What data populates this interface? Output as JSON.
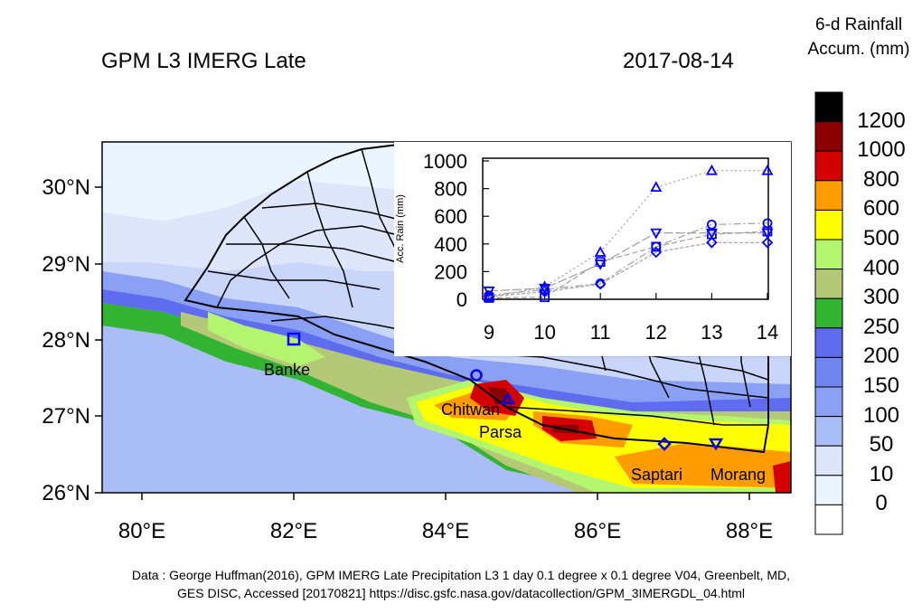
{
  "header": {
    "title": "GPM L3 IMERG Late",
    "date": "2017-08-14"
  },
  "colorbar": {
    "title_line1": "6-d Rainfall",
    "title_line2": "Accum. (mm)",
    "levels": [
      "1200",
      "1000",
      "800",
      "600",
      "500",
      "400",
      "300",
      "250",
      "200",
      "150",
      "100",
      "50",
      "10",
      "0"
    ],
    "colors": [
      "#000000",
      "#8b0000",
      "#d40000",
      "#ff9c00",
      "#ffff00",
      "#b4f56f",
      "#b4c878",
      "#32b432",
      "#5f6cf0",
      "#6f86f0",
      "#8aa0f5",
      "#a9bdf7",
      "#dde6fb",
      "#ebf5ff",
      "#ffffff"
    ]
  },
  "map": {
    "lat_labels": [
      "30°N",
      "29°N",
      "28°N",
      "27°N",
      "26°N"
    ],
    "lon_labels": [
      "80°E",
      "82°E",
      "84°E",
      "86°E",
      "88°E"
    ],
    "stations": [
      {
        "name": "Banke",
        "marker": "square"
      },
      {
        "name": "Chitwan",
        "marker": "circle"
      },
      {
        "name": "Parsa",
        "marker": "triangle-up"
      },
      {
        "name": "Saptari",
        "marker": "diamond"
      },
      {
        "name": "Morang",
        "marker": "triangle-down"
      }
    ],
    "marker_color": "#0000ff"
  },
  "chart_data": {
    "type": "line",
    "xlabel": "",
    "ylabel": "Acc. Rain (mm)",
    "x": [
      9,
      10,
      11,
      12,
      13,
      14
    ],
    "ylim": [
      0,
      1000
    ],
    "xticks": [
      "9",
      "10",
      "11",
      "12",
      "13",
      "14"
    ],
    "yticks": [
      "0",
      "200",
      "400",
      "600",
      "800",
      "1000"
    ],
    "series": [
      {
        "marker": "square",
        "values": [
          10,
          15,
          270,
          380,
          470,
          490
        ]
      },
      {
        "marker": "circle",
        "values": [
          30,
          70,
          115,
          380,
          540,
          550
        ]
      },
      {
        "marker": "triangle-up",
        "values": [
          15,
          90,
          340,
          810,
          930,
          930
        ]
      },
      {
        "marker": "diamond",
        "values": [
          20,
          55,
          110,
          340,
          410,
          410
        ]
      },
      {
        "marker": "triangle-down",
        "values": [
          60,
          80,
          255,
          480,
          480,
          480
        ]
      }
    ]
  },
  "footer": {
    "line1": "Data : George Huffman(2016), GPM IMERG Late Precipitation L3 1 day 0.1 degree x 0.1 degree V04, Greenbelt, MD,",
    "line2": "GES DISC, Accessed [20170821] https://disc.gsfc.nasa.gov/datacollection/GPM_3IMERGDL_04.html"
  }
}
